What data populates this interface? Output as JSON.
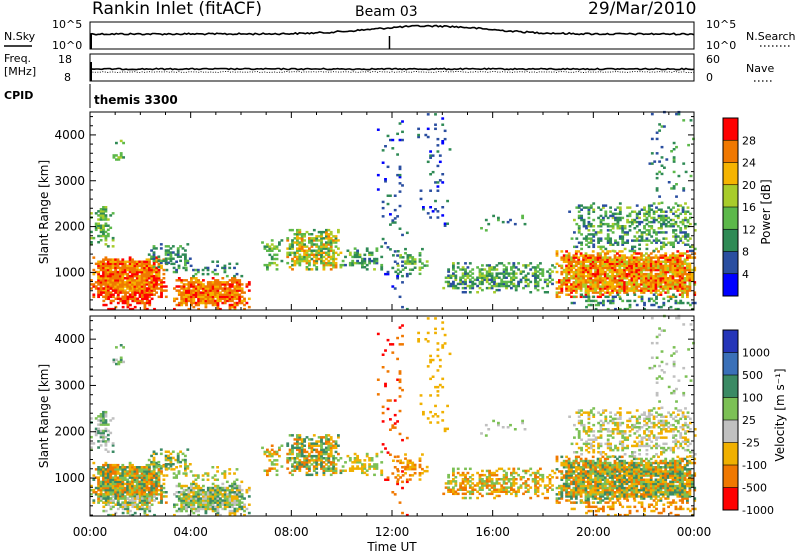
{
  "header": {
    "station": "Rankin Inlet (fitACF)",
    "beam": "Beam 03",
    "date": "29/Mar/2010"
  },
  "top_panels": {
    "nsky_label": "N.Sky",
    "nsky_ticks": [
      "10^5",
      "10^0"
    ],
    "nsearch_label": "N.Search",
    "nsearch_ticks": [
      "10^5",
      "10^0"
    ],
    "freq_label_1": "Freq.",
    "freq_label_2": "[MHz]",
    "freq_ticks": [
      "18",
      "8"
    ],
    "nave_label": "Nave",
    "nave_ticks": [
      "60",
      "0"
    ],
    "cpid_label": "CPID",
    "cpid_value": "themis 3300"
  },
  "colors": {
    "power": [
      "#0000ff",
      "#2a4ea0",
      "#2f8a55",
      "#5cb84a",
      "#a8cc2a",
      "#f5b400",
      "#f07800",
      "#ff0000"
    ],
    "velocity": [
      "#2535b8",
      "#3a70b8",
      "#3b8a64",
      "#7cc055",
      "#c0c0c0",
      "#f0b000",
      "#f07800",
      "#ff0000"
    ]
  },
  "chart_data": [
    {
      "type": "heatmap",
      "ylabel": "Slant Range [km]",
      "ylim": [
        180,
        4500
      ],
      "xlim": [
        0,
        24
      ],
      "y_ticks": [
        1000,
        2000,
        3000,
        4000
      ],
      "colorbar_label": "Power [dB]",
      "colorbar_ticks": [
        "4",
        "8",
        "12",
        "16",
        "20",
        "24",
        "28"
      ]
    },
    {
      "type": "heatmap",
      "xlabel": "Time UT",
      "ylabel": "Slant Range [km]",
      "ylim": [
        180,
        4500
      ],
      "xlim": [
        0,
        24
      ],
      "x_ticks": [
        "00:00",
        "04:00",
        "08:00",
        "12:00",
        "16:00",
        "20:00",
        "00:00"
      ],
      "y_ticks": [
        1000,
        2000,
        3000,
        4000
      ],
      "colorbar_label": "Velocity [m s⁻¹]",
      "colorbar_ticks": [
        "1000",
        "500",
        "100",
        "25",
        "-25",
        "-100",
        "-500",
        "-1000"
      ]
    }
  ]
}
